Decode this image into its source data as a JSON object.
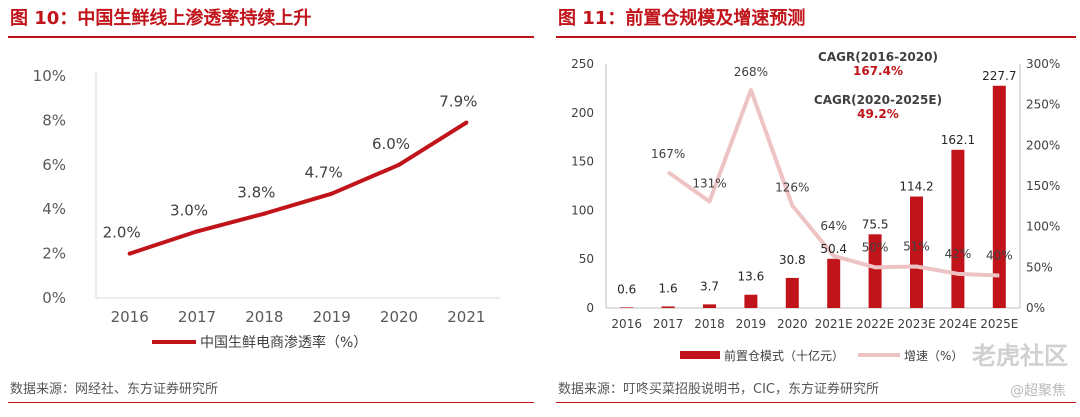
{
  "colors": {
    "accent": "#c0131a",
    "line_light": "#eec3c3",
    "source": "#555555"
  },
  "left": {
    "title": "图 10：中国生鲜线上渗透率持续上升",
    "source": "数据来源：网经社、东方证券研究所"
  },
  "right": {
    "title": "图 11：前置仓规模及增速预测",
    "source": "数据来源：叮咚买菜招股说明书，CIC，东方证券研究所"
  },
  "watermark": {
    "brand": "老虎社区",
    "sub": "@超聚焦"
  },
  "chart_data": [
    {
      "type": "line",
      "title": "图 10：中国生鲜线上渗透率持续上升",
      "categories": [
        "2016",
        "2017",
        "2018",
        "2019",
        "2020",
        "2021"
      ],
      "series": [
        {
          "name": "中国生鲜电商渗透率（%）",
          "values": [
            2.0,
            3.0,
            3.8,
            4.7,
            6.0,
            7.9
          ]
        }
      ],
      "data_labels": [
        "2.0%",
        "3.0%",
        "3.8%",
        "4.7%",
        "6.0%",
        "7.9%"
      ],
      "yticks": [
        "0%",
        "2%",
        "4%",
        "6%",
        "8%",
        "10%"
      ],
      "ylim": [
        0,
        10
      ],
      "legend": "bottom"
    },
    {
      "type": "bar",
      "title": "图 11：前置仓规模及增速预测",
      "categories": [
        "2016",
        "2017",
        "2018",
        "2019",
        "2020",
        "2021E",
        "2022E",
        "2023E",
        "2024E",
        "2025E"
      ],
      "series": [
        {
          "name": "前置仓模式（十亿元）",
          "values": [
            0.6,
            1.6,
            3.7,
            13.6,
            30.8,
            50.4,
            75.5,
            114.2,
            162.1,
            227.7
          ],
          "labels": [
            "0.6",
            "1.6",
            "3.7",
            "13.6",
            "30.8",
            "50.4",
            "75.5",
            "114.2",
            "162.1",
            "227.7"
          ]
        },
        {
          "name": "增速（%）",
          "axis": "right",
          "values": [
            null,
            167,
            131,
            268,
            126,
            64,
            50,
            51,
            42,
            40
          ],
          "labels": [
            "",
            "167%",
            "131%",
            "268%",
            "126%",
            "64%",
            "50%",
            "51%",
            "42%",
            "40%"
          ]
        }
      ],
      "yticks_left": [
        "0",
        "50",
        "100",
        "150",
        "200",
        "250"
      ],
      "yticks_right": [
        "0%",
        "50%",
        "100%",
        "150%",
        "200%",
        "250%",
        "300%"
      ],
      "ylim_left": [
        0,
        250
      ],
      "ylim_right": [
        0,
        300
      ],
      "annotations": [
        {
          "label": "CAGR(2016-2020)",
          "value": "167.4%"
        },
        {
          "label": "CAGR(2020-2025E)",
          "value": "49.2%"
        }
      ],
      "legend": "bottom"
    }
  ]
}
